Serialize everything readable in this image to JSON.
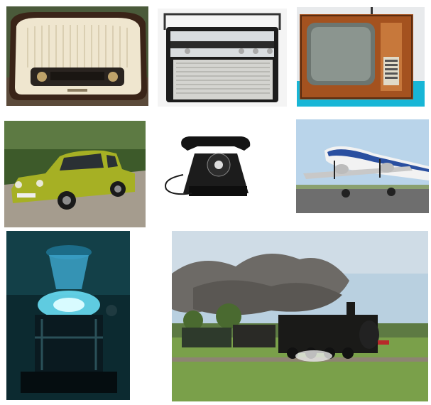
{
  "tiles": [
    {
      "id": "tube-radio"
    },
    {
      "id": "portable-radio"
    },
    {
      "id": "vintage-tv"
    },
    {
      "id": "green-car"
    },
    {
      "id": "rotary-phone"
    },
    {
      "id": "propeller-airplane"
    },
    {
      "id": "glowing-machine"
    },
    {
      "id": "steam-train"
    }
  ],
  "colors": {
    "radio_wood": "#3a2418",
    "radio_cream": "#efe6cf",
    "tv_wood": "#a4521f",
    "tv_base": "#18b6d6",
    "car_green": "#a6b024",
    "phone_black": "#141414",
    "sky_blue": "#b9d4ea",
    "glow_cyan": "#6fe8ff",
    "grass": "#7aa04a",
    "smoke": "#6d6a66"
  }
}
